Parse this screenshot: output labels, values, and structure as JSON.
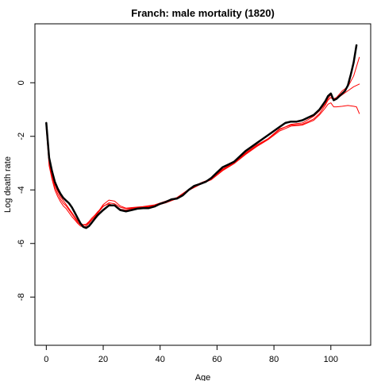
{
  "chart_data": {
    "type": "line",
    "title": "Franch: male mortality (1820)",
    "xlabel": "Age",
    "ylabel": "Log death rate",
    "xlim": [
      -4,
      114
    ],
    "ylim": [
      -9.8,
      2.2
    ],
    "x_ticks": [
      0,
      20,
      40,
      60,
      80,
      100
    ],
    "x_tick_labels": [
      "0",
      "20",
      "40",
      "60",
      "80",
      "100"
    ],
    "y_ticks": [
      0,
      -2,
      -4,
      -6,
      -8
    ],
    "y_tick_labels": [
      "0",
      "-2",
      "-4",
      "-6",
      "-8"
    ],
    "colors": {
      "observed": "#000000",
      "fitted": "#ff0000"
    },
    "series": [
      {
        "color": "#000000",
        "width": 2.5,
        "x": [
          0,
          1,
          2,
          3,
          4,
          5,
          6,
          7,
          8,
          9,
          10,
          11,
          12,
          13,
          14,
          15,
          16,
          17,
          18,
          19,
          20,
          22,
          24,
          26,
          28,
          30,
          32,
          34,
          36,
          38,
          40,
          42,
          44,
          46,
          48,
          50,
          52,
          54,
          56,
          58,
          60,
          62,
          64,
          66,
          68,
          70,
          72,
          74,
          76,
          78,
          80,
          82,
          84,
          86,
          88,
          90,
          92,
          94,
          96,
          98,
          99,
          100,
          101,
          102,
          103,
          104,
          105,
          106,
          107,
          108,
          109
        ],
        "y": [
          -1.5,
          -2.8,
          -3.3,
          -3.7,
          -3.95,
          -4.15,
          -4.3,
          -4.4,
          -4.5,
          -4.65,
          -4.85,
          -5.05,
          -5.25,
          -5.38,
          -5.42,
          -5.35,
          -5.22,
          -5.08,
          -4.95,
          -4.85,
          -4.75,
          -4.58,
          -4.58,
          -4.75,
          -4.8,
          -4.75,
          -4.7,
          -4.68,
          -4.68,
          -4.62,
          -4.52,
          -4.45,
          -4.35,
          -4.32,
          -4.2,
          -4.0,
          -3.85,
          -3.78,
          -3.7,
          -3.55,
          -3.35,
          -3.15,
          -3.05,
          -2.95,
          -2.75,
          -2.55,
          -2.4,
          -2.25,
          -2.1,
          -1.95,
          -1.8,
          -1.65,
          -1.5,
          -1.45,
          -1.45,
          -1.4,
          -1.3,
          -1.2,
          -1.0,
          -0.7,
          -0.5,
          -0.4,
          -0.65,
          -0.6,
          -0.5,
          -0.4,
          -0.3,
          -0.1,
          0.3,
          0.75,
          1.4
        ]
      },
      {
        "color": "#ff0000",
        "width": 1,
        "x": [
          0,
          1,
          2,
          3,
          4,
          5,
          6,
          7,
          8,
          9,
          10,
          11,
          12,
          13,
          14,
          15,
          16,
          17,
          18,
          19,
          20,
          22,
          24,
          26,
          28,
          30,
          34,
          38,
          42,
          46,
          50,
          54,
          58,
          62,
          66,
          70,
          74,
          78,
          82,
          86,
          90,
          94,
          96,
          98,
          99,
          100,
          101,
          102,
          104,
          106,
          108,
          110
        ],
        "y": [
          -1.6,
          -3.0,
          -3.5,
          -3.9,
          -4.15,
          -4.35,
          -4.5,
          -4.6,
          -4.75,
          -4.9,
          -5.05,
          -5.2,
          -5.3,
          -5.32,
          -5.3,
          -5.22,
          -5.1,
          -5.0,
          -4.88,
          -4.75,
          -4.62,
          -4.48,
          -4.52,
          -4.65,
          -4.7,
          -4.68,
          -4.63,
          -4.58,
          -4.45,
          -4.3,
          -4.0,
          -3.78,
          -3.6,
          -3.25,
          -3.0,
          -2.65,
          -2.35,
          -2.1,
          -1.75,
          -1.55,
          -1.5,
          -1.25,
          -1.05,
          -0.8,
          -0.6,
          -0.45,
          -0.6,
          -0.55,
          -0.3,
          -0.15,
          0.25,
          0.95
        ]
      },
      {
        "color": "#ff0000",
        "width": 1,
        "x": [
          0,
          1,
          2,
          3,
          4,
          5,
          6,
          7,
          8,
          9,
          10,
          11,
          12,
          13,
          14,
          15,
          16,
          17,
          18,
          19,
          20,
          22,
          24,
          26,
          28,
          30,
          34,
          38,
          42,
          46,
          50,
          54,
          58,
          62,
          66,
          70,
          74,
          78,
          82,
          86,
          90,
          94,
          96,
          98,
          99,
          100,
          101,
          102,
          104,
          106,
          108,
          110
        ],
        "y": [
          -1.7,
          -3.1,
          -3.6,
          -4.0,
          -4.25,
          -4.45,
          -4.6,
          -4.7,
          -4.85,
          -5.0,
          -5.12,
          -5.25,
          -5.35,
          -5.38,
          -5.35,
          -5.25,
          -5.12,
          -5.0,
          -4.85,
          -4.7,
          -4.55,
          -4.38,
          -4.42,
          -4.6,
          -4.68,
          -4.66,
          -4.62,
          -4.56,
          -4.42,
          -4.28,
          -3.98,
          -3.75,
          -3.58,
          -3.22,
          -2.98,
          -2.62,
          -2.32,
          -2.08,
          -1.72,
          -1.58,
          -1.55,
          -1.35,
          -1.15,
          -0.85,
          -0.65,
          -0.55,
          -0.65,
          -0.6,
          -0.45,
          -0.3,
          -0.15,
          -0.05
        ]
      },
      {
        "color": "#ff0000",
        "width": 1,
        "x": [
          0,
          1,
          2,
          3,
          4,
          5,
          6,
          7,
          8,
          9,
          10,
          11,
          12,
          13,
          14,
          15,
          16,
          17,
          18,
          19,
          20,
          22,
          24,
          26,
          28,
          30,
          34,
          38,
          42,
          46,
          50,
          54,
          58,
          62,
          66,
          70,
          74,
          78,
          82,
          86,
          90,
          94,
          96,
          98,
          99,
          100,
          101,
          102,
          104,
          106,
          108,
          109,
          110
        ],
        "y": [
          -1.55,
          -2.9,
          -3.4,
          -3.8,
          -4.05,
          -4.25,
          -4.4,
          -4.55,
          -4.7,
          -4.85,
          -5.0,
          -5.15,
          -5.25,
          -5.3,
          -5.28,
          -5.18,
          -5.05,
          -4.95,
          -4.82,
          -4.72,
          -4.6,
          -4.52,
          -4.6,
          -4.72,
          -4.75,
          -4.7,
          -4.65,
          -4.6,
          -4.48,
          -4.32,
          -4.02,
          -3.8,
          -3.62,
          -3.28,
          -3.02,
          -2.68,
          -2.38,
          -2.12,
          -1.8,
          -1.62,
          -1.58,
          -1.4,
          -1.2,
          -0.95,
          -0.8,
          -0.75,
          -0.9,
          -0.9,
          -0.88,
          -0.85,
          -0.88,
          -0.9,
          -1.15
        ]
      }
    ]
  }
}
